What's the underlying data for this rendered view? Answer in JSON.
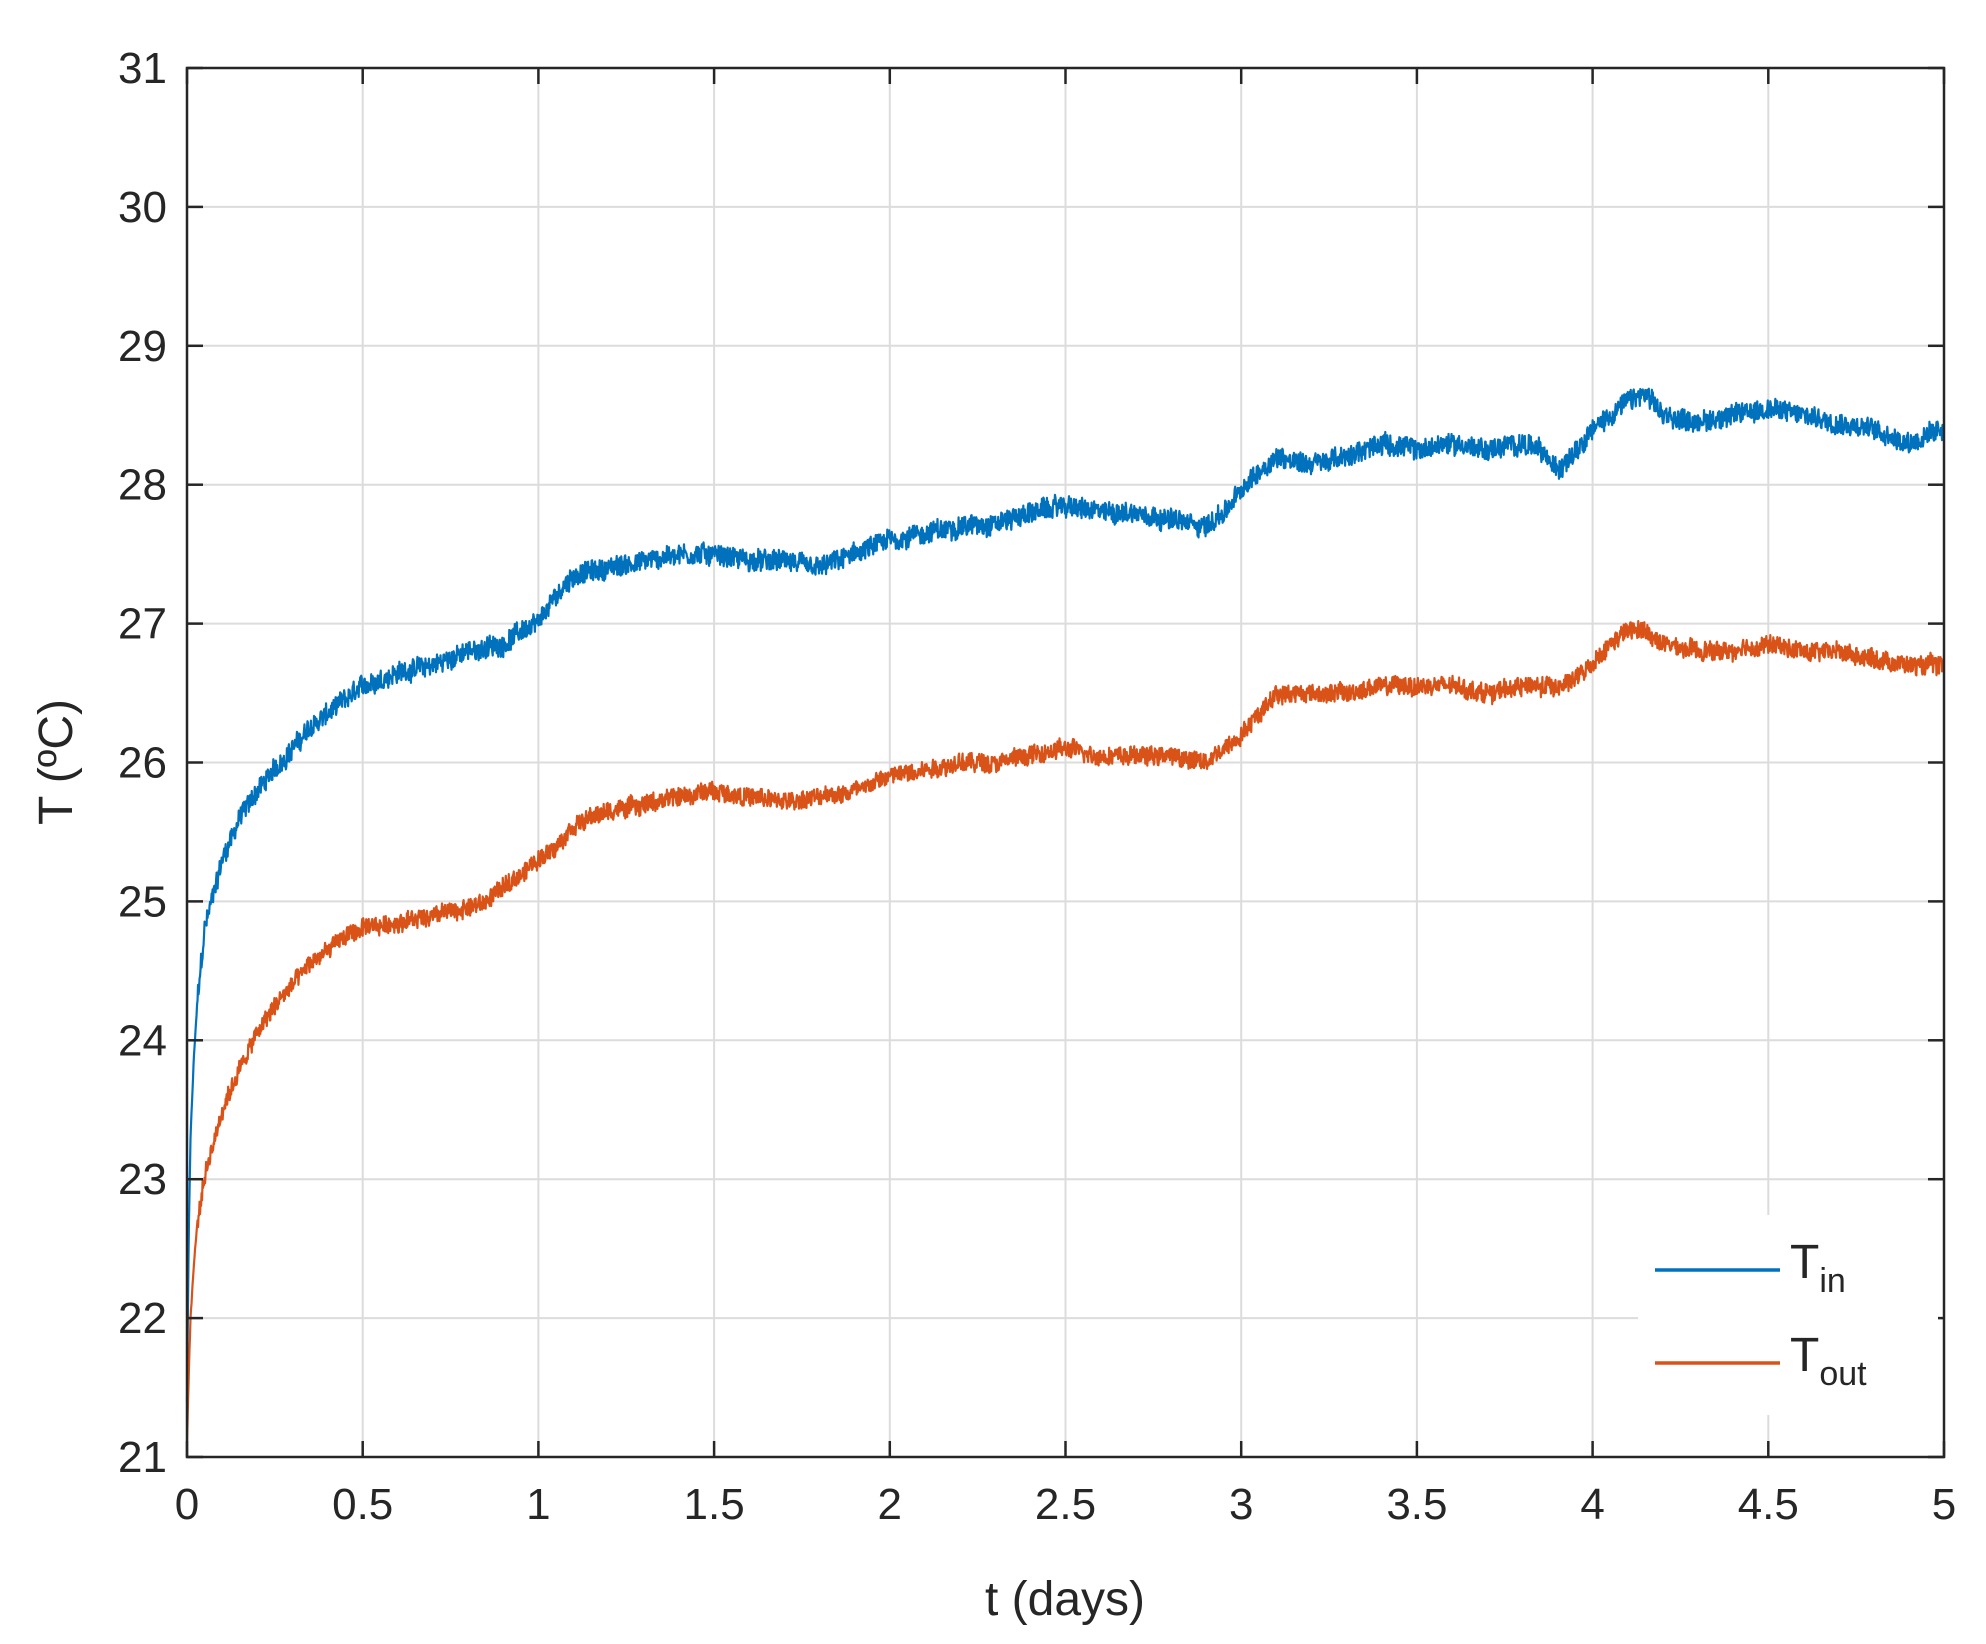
{
  "chart_data": {
    "type": "line",
    "title": "",
    "xlabel": "t (days)",
    "ylabel": "T (ºC)",
    "xlim": [
      0,
      5
    ],
    "ylim": [
      21,
      31
    ],
    "xticks": [
      0,
      0.5,
      1,
      1.5,
      2,
      2.5,
      3,
      3.5,
      4,
      4.5,
      5
    ],
    "xtick_labels": [
      "0",
      "0.5",
      "1",
      "1.5",
      "2",
      "2.5",
      "3",
      "3.5",
      "4",
      "4.5",
      "5"
    ],
    "yticks": [
      21,
      22,
      23,
      24,
      25,
      26,
      27,
      28,
      29,
      30,
      31
    ],
    "ytick_labels": [
      "21",
      "22",
      "23",
      "24",
      "25",
      "26",
      "27",
      "28",
      "29",
      "30",
      "31"
    ],
    "grid": true,
    "legend_position": "bottom-right",
    "series": [
      {
        "name": "T",
        "subscript": "in",
        "color": "#0072BD",
        "noise": 0.09,
        "x": [
          0,
          0.005,
          0.01,
          0.02,
          0.03,
          0.05,
          0.08,
          0.1,
          0.15,
          0.2,
          0.25,
          0.3,
          0.35,
          0.4,
          0.45,
          0.5,
          0.6,
          0.7,
          0.8,
          0.9,
          0.95,
          1.0,
          1.05,
          1.1,
          1.2,
          1.3,
          1.4,
          1.5,
          1.6,
          1.7,
          1.8,
          1.9,
          2.0,
          2.1,
          2.2,
          2.3,
          2.4,
          2.5,
          2.6,
          2.7,
          2.8,
          2.9,
          2.95,
          3.0,
          3.05,
          3.1,
          3.2,
          3.3,
          3.4,
          3.5,
          3.6,
          3.7,
          3.8,
          3.85,
          3.9,
          3.95,
          4.0,
          4.05,
          4.1,
          4.15,
          4.2,
          4.3,
          4.4,
          4.5,
          4.6,
          4.7,
          4.8,
          4.9,
          5.0
        ],
        "y": [
          21.4,
          22.6,
          23.3,
          23.9,
          24.3,
          24.8,
          25.1,
          25.3,
          25.6,
          25.8,
          25.95,
          26.1,
          26.25,
          26.35,
          26.45,
          26.55,
          26.65,
          26.7,
          26.8,
          26.85,
          26.95,
          27.0,
          27.2,
          27.35,
          27.4,
          27.45,
          27.5,
          27.5,
          27.45,
          27.45,
          27.4,
          27.5,
          27.6,
          27.65,
          27.7,
          27.72,
          27.8,
          27.85,
          27.8,
          27.8,
          27.75,
          27.7,
          27.8,
          27.95,
          28.1,
          28.2,
          28.15,
          28.2,
          28.3,
          28.25,
          28.3,
          28.25,
          28.3,
          28.25,
          28.1,
          28.25,
          28.4,
          28.5,
          28.6,
          28.65,
          28.5,
          28.45,
          28.5,
          28.55,
          28.5,
          28.45,
          28.4,
          28.3,
          28.4
        ]
      },
      {
        "name": "T",
        "subscript": "out",
        "color": "#D95319",
        "noise": 0.08,
        "x": [
          0,
          0.005,
          0.01,
          0.02,
          0.03,
          0.05,
          0.08,
          0.1,
          0.15,
          0.2,
          0.25,
          0.3,
          0.35,
          0.4,
          0.45,
          0.5,
          0.6,
          0.7,
          0.8,
          0.85,
          0.9,
          0.95,
          1.0,
          1.05,
          1.1,
          1.2,
          1.3,
          1.4,
          1.5,
          1.6,
          1.7,
          1.8,
          1.9,
          2.0,
          2.1,
          2.2,
          2.3,
          2.4,
          2.5,
          2.6,
          2.7,
          2.8,
          2.9,
          2.95,
          3.0,
          3.05,
          3.1,
          3.2,
          3.3,
          3.4,
          3.5,
          3.6,
          3.7,
          3.8,
          3.9,
          3.95,
          4.0,
          4.05,
          4.1,
          4.15,
          4.2,
          4.3,
          4.4,
          4.5,
          4.6,
          4.7,
          4.8,
          4.9,
          5.0
        ],
        "y": [
          21.1,
          21.6,
          22.0,
          22.4,
          22.7,
          23.0,
          23.3,
          23.5,
          23.8,
          24.05,
          24.25,
          24.4,
          24.55,
          24.65,
          24.75,
          24.8,
          24.85,
          24.9,
          24.95,
          25.0,
          25.1,
          25.2,
          25.3,
          25.4,
          25.55,
          25.65,
          25.7,
          25.75,
          25.8,
          25.75,
          25.72,
          25.75,
          25.8,
          25.9,
          25.95,
          26.0,
          26.0,
          26.05,
          26.1,
          26.05,
          26.05,
          26.05,
          26.0,
          26.1,
          26.2,
          26.35,
          26.5,
          26.5,
          26.5,
          26.55,
          26.55,
          26.55,
          26.5,
          26.55,
          26.55,
          26.6,
          26.7,
          26.85,
          26.95,
          26.95,
          26.85,
          26.8,
          26.8,
          26.85,
          26.8,
          26.8,
          26.75,
          26.7,
          26.7
        ]
      }
    ]
  }
}
